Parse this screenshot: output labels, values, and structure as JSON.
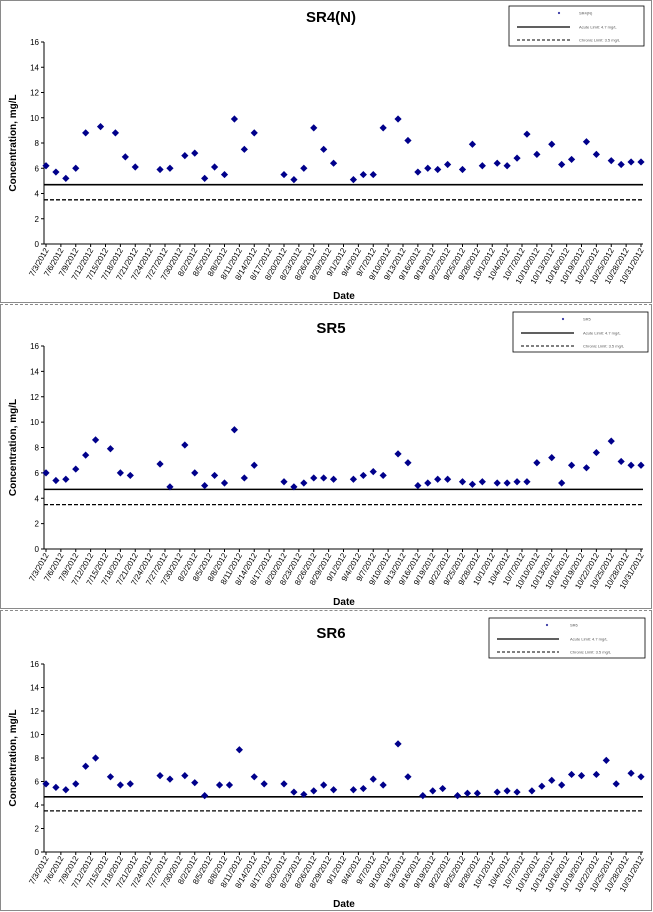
{
  "chart_data": [
    {
      "type": "scatter",
      "title": "SR4(N)",
      "xlabel": "Date",
      "ylabel": "Concentration, mg/L",
      "ylim": [
        0,
        16
      ],
      "yticks": [
        0,
        2,
        4,
        6,
        8,
        10,
        12,
        14,
        16
      ],
      "xlim": [
        "2012-07-03",
        "2012-10-31"
      ],
      "xticks": [
        "7/3/2012",
        "7/6/2012",
        "7/9/2012",
        "7/12/2012",
        "7/15/2012",
        "7/18/2012",
        "7/21/2012",
        "7/24/2012",
        "7/27/2012",
        "7/30/2012",
        "8/2/2012",
        "8/5/2012",
        "8/8/2012",
        "8/11/2012",
        "8/14/2012",
        "8/17/2012",
        "8/20/2012",
        "8/23/2012",
        "8/26/2012",
        "8/29/2012",
        "9/1/2012",
        "9/4/2012",
        "9/7/2012",
        "9/10/2012",
        "9/13/2012",
        "9/16/2012",
        "9/19/2012",
        "9/22/2012",
        "9/25/2012",
        "9/28/2012",
        "10/1/2012",
        "10/4/2012",
        "10/7/2012",
        "10/10/2012",
        "10/13/2012",
        "10/16/2012",
        "10/19/2012",
        "10/22/2012",
        "10/25/2012",
        "10/28/2012",
        "10/31/2012"
      ],
      "grid": false,
      "legend_position": "top-right",
      "legend_entries": [
        "SR4(N)",
        "Acute Limit: 4.7 mg/L",
        "Chronic Limit: 3.5 mg/L"
      ],
      "reference_lines": [
        {
          "value": 4.7,
          "style": "solid"
        },
        {
          "value": 3.5,
          "style": "dashed"
        }
      ],
      "marker_color": "#00008b",
      "x": [
        "2012-07-03",
        "2012-07-05",
        "2012-07-07",
        "2012-07-09",
        "2012-07-11",
        "2012-07-14",
        "2012-07-17",
        "2012-07-19",
        "2012-07-21",
        "2012-07-26",
        "2012-07-28",
        "2012-07-31",
        "2012-08-02",
        "2012-08-04",
        "2012-08-06",
        "2012-08-08",
        "2012-08-10",
        "2012-08-12",
        "2012-08-14",
        "2012-08-20",
        "2012-08-22",
        "2012-08-24",
        "2012-08-26",
        "2012-08-28",
        "2012-08-30",
        "2012-09-03",
        "2012-09-05",
        "2012-09-07",
        "2012-09-09",
        "2012-09-12",
        "2012-09-14",
        "2012-09-16",
        "2012-09-18",
        "2012-09-20",
        "2012-09-22",
        "2012-09-25",
        "2012-09-27",
        "2012-09-29",
        "2012-10-02",
        "2012-10-04",
        "2012-10-06",
        "2012-10-08",
        "2012-10-10",
        "2012-10-13",
        "2012-10-15",
        "2012-10-17",
        "2012-10-20",
        "2012-10-22",
        "2012-10-25",
        "2012-10-27",
        "2012-10-29",
        "2012-10-31"
      ],
      "y": [
        6.2,
        5.7,
        5.2,
        6.0,
        8.8,
        9.3,
        8.8,
        6.9,
        6.1,
        5.9,
        6.0,
        7.0,
        7.2,
        5.2,
        6.1,
        5.5,
        9.9,
        7.5,
        8.8,
        5.5,
        5.1,
        6.0,
        9.2,
        7.5,
        6.4,
        5.1,
        5.5,
        5.5,
        9.2,
        9.9,
        8.2,
        5.7,
        6.0,
        5.9,
        6.3,
        5.9,
        7.9,
        6.2,
        6.4,
        6.2,
        6.8,
        8.7,
        7.1,
        7.9,
        6.3,
        6.7,
        8.1,
        7.1,
        6.6,
        6.3,
        6.5,
        6.5
      ]
    },
    {
      "type": "scatter",
      "title": "SR5",
      "xlabel": "Date",
      "ylabel": "Concentration, mg/L",
      "ylim": [
        0,
        16
      ],
      "yticks": [
        0,
        2,
        4,
        6,
        8,
        10,
        12,
        14,
        16
      ],
      "xlim": [
        "2012-07-03",
        "2012-10-31"
      ],
      "xticks": [
        "7/3/2012",
        "7/6/2012",
        "7/9/2012",
        "7/12/2012",
        "7/15/2012",
        "7/18/2012",
        "7/21/2012",
        "7/24/2012",
        "7/27/2012",
        "7/30/2012",
        "8/2/2012",
        "8/5/2012",
        "8/8/2012",
        "8/11/2012",
        "8/14/2012",
        "8/17/2012",
        "8/20/2012",
        "8/23/2012",
        "8/26/2012",
        "8/29/2012",
        "9/1/2012",
        "9/4/2012",
        "9/7/2012",
        "9/10/2012",
        "9/13/2012",
        "9/16/2012",
        "9/19/2012",
        "9/22/2012",
        "9/25/2012",
        "9/28/2012",
        "10/1/2012",
        "10/4/2012",
        "10/7/2012",
        "10/10/2012",
        "10/13/2012",
        "10/16/2012",
        "10/19/2012",
        "10/22/2012",
        "10/25/2012",
        "10/28/2012",
        "10/31/2012"
      ],
      "grid": false,
      "legend_position": "top-right",
      "legend_entries": [
        "SR5",
        "Acute Limit: 4.7 mg/L",
        "Chronic Limit: 3.5 mg/L"
      ],
      "reference_lines": [
        {
          "value": 4.7,
          "style": "solid"
        },
        {
          "value": 3.5,
          "style": "dashed"
        }
      ],
      "marker_color": "#00008b",
      "x": [
        "2012-07-03",
        "2012-07-05",
        "2012-07-07",
        "2012-07-09",
        "2012-07-11",
        "2012-07-13",
        "2012-07-16",
        "2012-07-18",
        "2012-07-20",
        "2012-07-26",
        "2012-07-28",
        "2012-07-31",
        "2012-08-02",
        "2012-08-04",
        "2012-08-06",
        "2012-08-08",
        "2012-08-10",
        "2012-08-12",
        "2012-08-14",
        "2012-08-20",
        "2012-08-22",
        "2012-08-24",
        "2012-08-26",
        "2012-08-28",
        "2012-08-30",
        "2012-09-03",
        "2012-09-05",
        "2012-09-07",
        "2012-09-09",
        "2012-09-12",
        "2012-09-14",
        "2012-09-16",
        "2012-09-18",
        "2012-09-20",
        "2012-09-22",
        "2012-09-25",
        "2012-09-27",
        "2012-09-29",
        "2012-10-02",
        "2012-10-04",
        "2012-10-06",
        "2012-10-08",
        "2012-10-10",
        "2012-10-13",
        "2012-10-15",
        "2012-10-17",
        "2012-10-20",
        "2012-10-22",
        "2012-10-25",
        "2012-10-27",
        "2012-10-29",
        "2012-10-31"
      ],
      "y": [
        6.0,
        5.4,
        5.5,
        6.3,
        7.4,
        8.6,
        7.9,
        6.0,
        5.8,
        6.7,
        4.9,
        8.2,
        6.0,
        5.0,
        5.8,
        5.2,
        9.4,
        5.6,
        6.6,
        5.3,
        4.9,
        5.2,
        5.6,
        5.6,
        5.5,
        5.5,
        5.8,
        6.1,
        5.8,
        7.5,
        6.8,
        5.0,
        5.2,
        5.5,
        5.5,
        5.3,
        5.1,
        5.3,
        5.2,
        5.2,
        5.3,
        5.3,
        6.8,
        7.2,
        5.2,
        6.6,
        6.4,
        7.6,
        8.5,
        6.9,
        6.6,
        6.6
      ]
    },
    {
      "type": "scatter",
      "title": "SR6",
      "xlabel": "Date",
      "ylabel": "Concentration, mg/L",
      "ylim": [
        0,
        16
      ],
      "yticks": [
        0,
        2,
        4,
        6,
        8,
        10,
        12,
        14,
        16
      ],
      "xlim": [
        "2012-07-03",
        "2012-10-31"
      ],
      "xticks": [
        "7/3/2012",
        "7/6/2012",
        "7/9/2012",
        "7/12/2012",
        "7/15/2012",
        "7/18/2012",
        "7/21/2012",
        "7/24/2012",
        "7/27/2012",
        "7/30/2012",
        "8/2/2012",
        "8/5/2012",
        "8/8/2012",
        "8/11/2012",
        "8/14/2012",
        "8/17/2012",
        "8/20/2012",
        "8/23/2012",
        "8/26/2012",
        "8/29/2012",
        "9/1/2012",
        "9/4/2012",
        "9/7/2012",
        "9/10/2012",
        "9/13/2012",
        "9/16/2012",
        "9/19/2012",
        "9/22/2012",
        "9/25/2012",
        "9/28/2012",
        "10/1/2012",
        "10/4/2012",
        "10/7/2012",
        "10/10/2012",
        "10/13/2012",
        "10/16/2012",
        "10/19/2012",
        "10/22/2012",
        "10/25/2012",
        "10/28/2012",
        "10/31/2012"
      ],
      "grid": false,
      "legend_position": "top-right",
      "legend_entries": [
        "SR6",
        "Acute Limit: 4.7 mg/L",
        "Chronic Limit: 3.5 mg/L"
      ],
      "reference_lines": [
        {
          "value": 4.7,
          "style": "solid"
        },
        {
          "value": 3.5,
          "style": "dashed"
        }
      ],
      "marker_color": "#00008b",
      "x": [
        "2012-07-03",
        "2012-07-05",
        "2012-07-07",
        "2012-07-09",
        "2012-07-11",
        "2012-07-13",
        "2012-07-16",
        "2012-07-18",
        "2012-07-20",
        "2012-07-26",
        "2012-07-28",
        "2012-07-31",
        "2012-08-02",
        "2012-08-04",
        "2012-08-07",
        "2012-08-09",
        "2012-08-11",
        "2012-08-14",
        "2012-08-16",
        "2012-08-20",
        "2012-08-22",
        "2012-08-24",
        "2012-08-26",
        "2012-08-28",
        "2012-08-30",
        "2012-09-03",
        "2012-09-05",
        "2012-09-07",
        "2012-09-09",
        "2012-09-12",
        "2012-09-14",
        "2012-09-17",
        "2012-09-19",
        "2012-09-21",
        "2012-09-24",
        "2012-09-26",
        "2012-09-28",
        "2012-10-02",
        "2012-10-04",
        "2012-10-06",
        "2012-10-09",
        "2012-10-11",
        "2012-10-13",
        "2012-10-15",
        "2012-10-17",
        "2012-10-19",
        "2012-10-22",
        "2012-10-24",
        "2012-10-26",
        "2012-10-29",
        "2012-10-31"
      ],
      "y": [
        5.8,
        5.5,
        5.3,
        5.8,
        7.3,
        8.0,
        6.4,
        5.7,
        5.8,
        6.5,
        6.2,
        6.5,
        5.9,
        4.8,
        5.7,
        5.7,
        8.7,
        6.4,
        5.8,
        5.8,
        5.1,
        4.9,
        5.2,
        5.7,
        5.3,
        5.3,
        5.4,
        6.2,
        5.7,
        9.2,
        6.4,
        4.8,
        5.2,
        5.4,
        4.8,
        5.0,
        5.0,
        5.1,
        5.2,
        5.1,
        5.2,
        5.6,
        6.1,
        5.7,
        6.6,
        6.5,
        6.6,
        7.8,
        5.8,
        6.7,
        6.4
      ]
    }
  ]
}
